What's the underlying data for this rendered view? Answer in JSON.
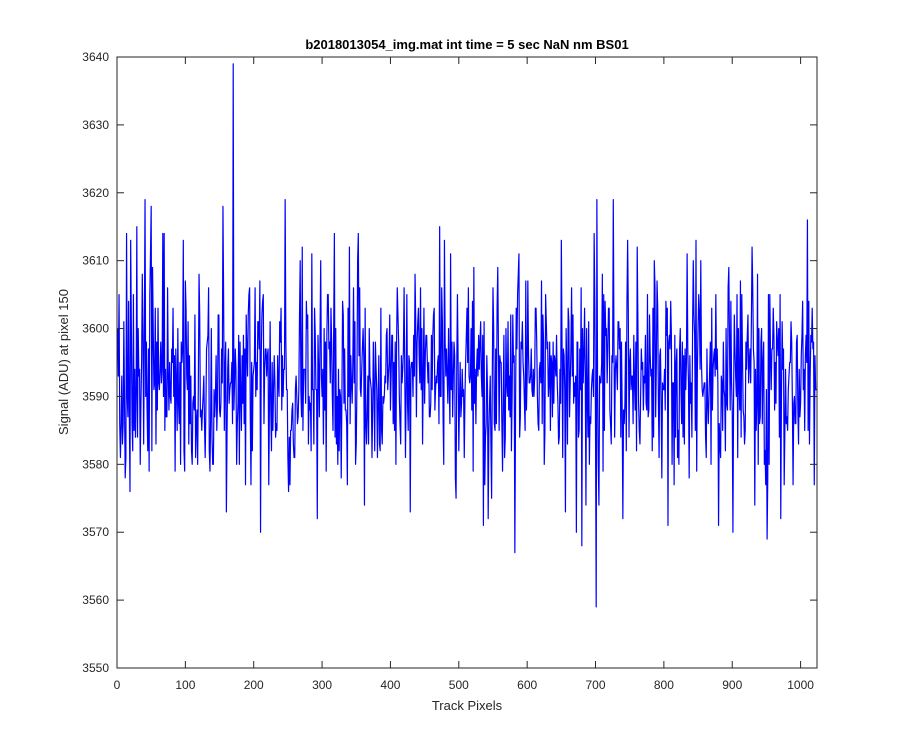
{
  "chart_data": {
    "type": "line",
    "title": "b2018013054_img.mat int time = 5 sec  NaN nm BS01",
    "xlabel": "Track Pixels",
    "ylabel": "Signal (ADU) at pixel 150",
    "xlim": [
      0,
      1024
    ],
    "ylim": [
      3550,
      3640
    ],
    "xticks": [
      0,
      100,
      200,
      300,
      400,
      500,
      600,
      700,
      800,
      900,
      1000
    ],
    "yticks": [
      3550,
      3560,
      3570,
      3580,
      3590,
      3600,
      3610,
      3620,
      3630,
      3640
    ],
    "grid": false,
    "legend": null,
    "series": [
      {
        "color": "#0000ff",
        "sampling": "one value per track pixel, 1 to 1024; values centered near 3593 ADU with random noise, clipped to 3567–3619 except the named excursions below",
        "approx_mean": 3593,
        "approx_spread": 8,
        "notable_points": [
          {
            "x": 1,
            "y": 3600
          },
          {
            "x": 8,
            "y": 3583
          },
          {
            "x": 12,
            "y": 3578
          },
          {
            "x": 14,
            "y": 3614
          },
          {
            "x": 29,
            "y": 3615
          },
          {
            "x": 41,
            "y": 3619
          },
          {
            "x": 47,
            "y": 3579
          },
          {
            "x": 50,
            "y": 3618
          },
          {
            "x": 69,
            "y": 3614
          },
          {
            "x": 129,
            "y": 3581
          },
          {
            "x": 155,
            "y": 3618
          },
          {
            "x": 170,
            "y": 3639
          },
          {
            "x": 188,
            "y": 3577
          },
          {
            "x": 222,
            "y": 3577
          },
          {
            "x": 246,
            "y": 3619
          },
          {
            "x": 318,
            "y": 3614
          },
          {
            "x": 353,
            "y": 3614
          },
          {
            "x": 362,
            "y": 3574
          },
          {
            "x": 429,
            "y": 3573
          },
          {
            "x": 543,
            "y": 3572
          },
          {
            "x": 582,
            "y": 3567
          },
          {
            "x": 672,
            "y": 3570
          },
          {
            "x": 680,
            "y": 3568
          },
          {
            "x": 698,
            "y": 3614
          },
          {
            "x": 701,
            "y": 3559
          },
          {
            "x": 726,
            "y": 3619
          },
          {
            "x": 806,
            "y": 3571
          },
          {
            "x": 880,
            "y": 3571
          },
          {
            "x": 901,
            "y": 3570
          },
          {
            "x": 951,
            "y": 3569
          },
          {
            "x": 971,
            "y": 3572
          },
          {
            "x": 1010,
            "y": 3616
          },
          {
            "x": 1024,
            "y": 3591
          }
        ]
      }
    ]
  }
}
